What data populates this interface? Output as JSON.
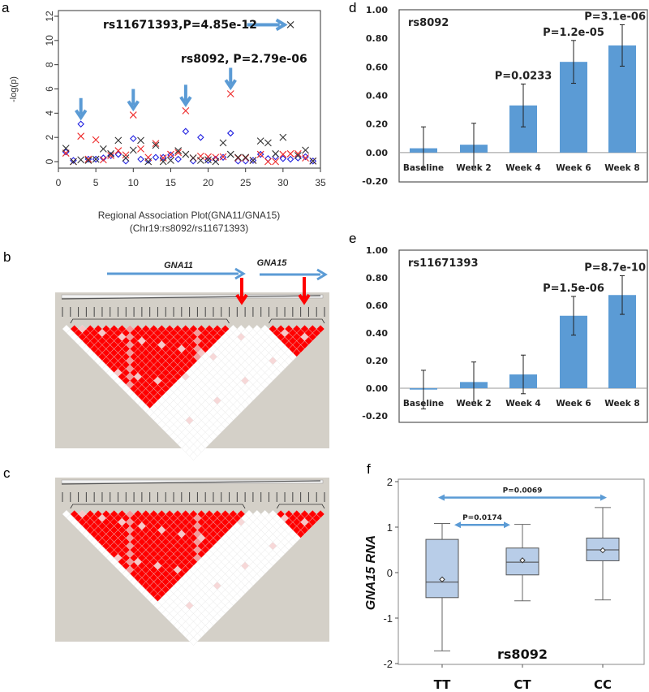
{
  "panel_letters": {
    "a": "a",
    "b": "b",
    "c": "c",
    "d": "d",
    "e": "e",
    "f": "f"
  },
  "colors": {
    "blue_series": "#2020e0",
    "red_series": "#ee2a2a",
    "black_series": "#333333",
    "annotation_arrow": "#5b9bd5",
    "bar": "#5b9bd5",
    "box_fill": "#b8cde8",
    "ld_red": "#ff0000",
    "ld_grey": "#d4d0c8",
    "ld_arrow": "#ff0000"
  },
  "chart_data": [
    {
      "id": "a",
      "type": "scatter",
      "title": "",
      "xlabel": "Regional Association Plot(GNA11/GNA15)",
      "xlabel2": "(Chr19:rs8092/rs11671393)",
      "ylabel": "-log(p)",
      "xlim": [
        0,
        35
      ],
      "ylim": [
        0,
        12
      ],
      "xticks": [
        0,
        5,
        10,
        15,
        20,
        25,
        30,
        35
      ],
      "yticks": [
        0,
        2,
        4,
        6,
        8,
        10,
        12
      ],
      "x": [
        1,
        2,
        3,
        4,
        5,
        6,
        7,
        8,
        9,
        10,
        11,
        12,
        13,
        14,
        15,
        16,
        17,
        18,
        19,
        20,
        21,
        22,
        23,
        24,
        25,
        26,
        27,
        28,
        29,
        30,
        31,
        32,
        33,
        34
      ],
      "series": [
        {
          "marker": "diamond",
          "color": "#2020e0",
          "values": [
            0.8,
            0.1,
            3.1,
            0.2,
            0.2,
            0.3,
            0.5,
            0.6,
            0.05,
            1.9,
            0.2,
            0.1,
            0.35,
            0.35,
            0.55,
            0.2,
            2.5,
            0.05,
            2.0,
            0.1,
            0.2,
            0.35,
            2.35,
            0.05,
            0.05,
            0.1,
            0.6,
            0.25,
            0.4,
            0.25,
            0.2,
            0.3,
            0.4,
            0.05
          ]
        },
        {
          "marker": "x",
          "color": "#ee2a2a",
          "values": [
            0.7,
            0.0,
            2.1,
            0.2,
            1.8,
            0.15,
            0.5,
            0.9,
            0.55,
            3.85,
            1.05,
            0.35,
            1.5,
            0.3,
            0.6,
            0.75,
            4.2,
            0.3,
            0.45,
            0.4,
            0.35,
            0.4,
            5.6,
            0.3,
            0.3,
            0.1,
            0.6,
            0.0,
            0.0,
            0.6,
            0.65,
            0.65,
            0.3,
            0.05
          ]
        },
        {
          "marker": "x",
          "color": "#333333",
          "values": [
            1.1,
            0.0,
            0.15,
            0.1,
            0.2,
            1.05,
            0.65,
            1.75,
            0.3,
            0.95,
            1.75,
            0.0,
            1.35,
            0.0,
            0.1,
            0.9,
            0.6,
            0.3,
            0.1,
            0.15,
            0.0,
            1.55,
            0.6,
            0.35,
            0.35,
            0.1,
            1.7,
            1.55,
            0.65,
            2.0,
            11.3,
            0.5,
            0.95,
            0.05
          ]
        }
      ],
      "down_arrows_at_x": [
        3,
        10,
        17,
        23
      ],
      "annotations": [
        {
          "text": "rs11671393,P=4.85e-12",
          "x": 31,
          "y": 11.3
        },
        {
          "text": "rs8092, P=2.79e-06",
          "x": 23,
          "y": 5.6
        }
      ]
    },
    {
      "id": "d",
      "type": "bar",
      "title": "rs8092",
      "categories": [
        "Baseline",
        "Week 2",
        "Week 4",
        "Week 6",
        "Week 8"
      ],
      "values": [
        0.03,
        0.055,
        0.33,
        0.635,
        0.75
      ],
      "errors": [
        0.15,
        0.15,
        0.15,
        0.15,
        0.145
      ],
      "pvalues": [
        "",
        "",
        "P=0.0233",
        "P=1.2e-05",
        "P=3.1e-06"
      ],
      "ylim": [
        -0.2,
        1.0
      ],
      "yticks": [
        "-0.20",
        "0.00",
        "0.20",
        "0.40",
        "0.60",
        "0.80",
        "1.00"
      ]
    },
    {
      "id": "e",
      "type": "bar",
      "title": "rs11671393",
      "categories": [
        "Baseline",
        "Week 2",
        "Week 4",
        "Week 6",
        "Week 8"
      ],
      "values": [
        -0.01,
        0.045,
        0.1,
        0.525,
        0.675
      ],
      "errors": [
        0.14,
        0.145,
        0.14,
        0.14,
        0.14
      ],
      "pvalues": [
        "",
        "",
        "",
        "P=1.5e-06",
        "P=8.7e-10"
      ],
      "ylim": [
        -0.2,
        1.0
      ],
      "yticks": [
        "-0.20",
        "0.00",
        "0.20",
        "0.40",
        "0.60",
        "0.80",
        "1.00"
      ]
    },
    {
      "id": "f",
      "type": "box",
      "title": "rs8092",
      "ylabel": "GNA15 RNA",
      "categories": [
        "TT",
        "CT",
        "CC"
      ],
      "boxes": [
        {
          "min": -1.72,
          "q1": -0.55,
          "median": -0.21,
          "q3": 0.73,
          "max": 1.08,
          "mean": -0.15
        },
        {
          "min": -0.62,
          "q1": -0.05,
          "median": 0.23,
          "q3": 0.54,
          "max": 1.06,
          "mean": 0.27
        },
        {
          "min": -0.6,
          "q1": 0.26,
          "median": 0.5,
          "q3": 0.76,
          "max": 1.43,
          "mean": 0.49
        }
      ],
      "ylim": [
        -2,
        2
      ],
      "yticks": [
        -2,
        -1,
        0,
        1,
        2
      ],
      "comparisons": [
        {
          "from": "TT",
          "to": "CC",
          "p": "P=0.0069",
          "y": 1.65
        },
        {
          "from": "TT",
          "to": "CT",
          "p": "P=0.0174",
          "y": 1.05
        }
      ]
    }
  ],
  "ld_plots": [
    {
      "id": "b",
      "snp_count": 34,
      "red_blocks": [
        [
          1,
          21
        ],
        [
          26,
          33
        ]
      ],
      "genes": [
        "GNA11",
        "GNA15"
      ]
    },
    {
      "id": "c",
      "snp_count": 34,
      "red_blocks": [
        [
          1,
          23
        ],
        [
          27,
          33
        ]
      ],
      "genes": []
    }
  ]
}
